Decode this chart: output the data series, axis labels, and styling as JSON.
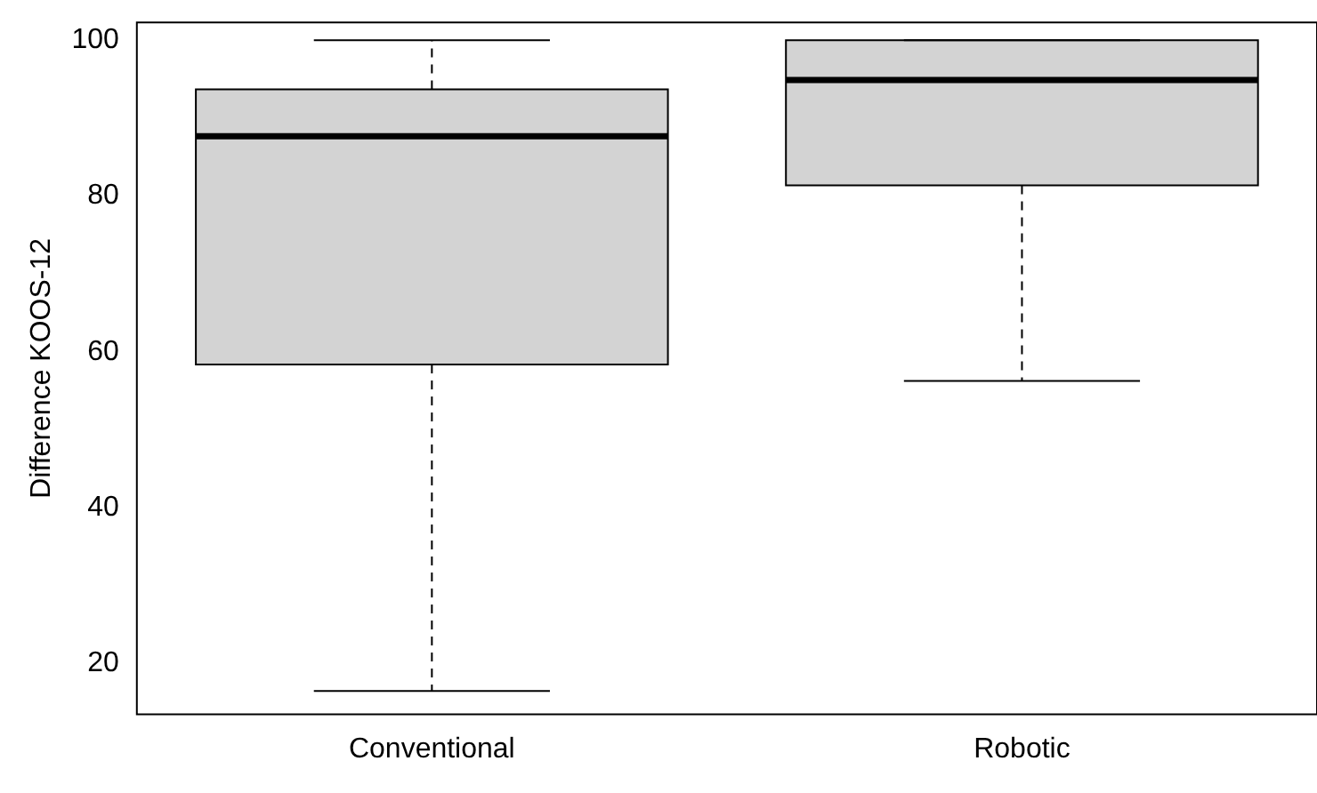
{
  "chart_data": {
    "type": "box",
    "ylabel": "Difference KOOS-12",
    "categories": [
      "Conventional",
      "Robotic"
    ],
    "color": "#d3d3d3",
    "boxes": [
      {
        "low": 16.5,
        "q1": 58.4,
        "median": 87.7,
        "q3": 93.7,
        "high": 100
      },
      {
        "low": 56.3,
        "q1": 81.4,
        "median": 94.9,
        "q3": 100,
        "high": 100
      }
    ],
    "ylim": [
      13.5,
      102.3
    ],
    "yticks": [
      20,
      40,
      60,
      80,
      100
    ],
    "grid": false,
    "legend": false
  }
}
